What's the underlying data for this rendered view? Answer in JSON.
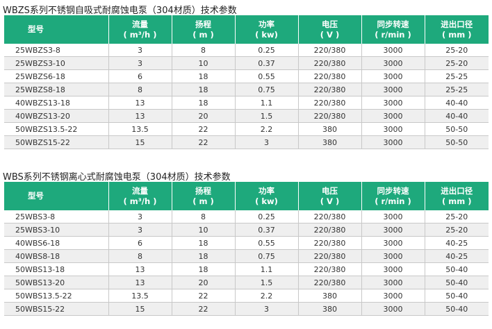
{
  "headers": [
    {
      "l1": "型号",
      "l2": ""
    },
    {
      "l1": "流量",
      "l2": "( m³/h )"
    },
    {
      "l1": "扬程",
      "l2": "( m )"
    },
    {
      "l1": "功率",
      "l2": "( kw)"
    },
    {
      "l1": "电压",
      "l2": "( V )"
    },
    {
      "l1": "同步转速",
      "l2": "( r/min )"
    },
    {
      "l1": "进出口径",
      "l2": "( mm )"
    }
  ],
  "tables": [
    {
      "title": "WBZS系列不锈钢自吸式耐腐蚀电泵（304材质）技术参数",
      "rows": [
        [
          "25WBZS3-8",
          "3",
          "8",
          "0.25",
          "220/380",
          "3000",
          "25-20"
        ],
        [
          "25WBZS3-10",
          "3",
          "10",
          "0.37",
          "220/380",
          "3000",
          "25-20"
        ],
        [
          "25WBZS6-18",
          "6",
          "18",
          "0.55",
          "220/380",
          "3000",
          "25-25"
        ],
        [
          "25WBZS8-18",
          "8",
          "18",
          "0.75",
          "220/380",
          "3000",
          "25-25"
        ],
        [
          "40WBZS13-18",
          "13",
          "18",
          "1.1",
          "220/380",
          "3000",
          "40-40"
        ],
        [
          "40WBZS13-20",
          "13",
          "20",
          "1.5",
          "220/380",
          "3000",
          "40-40"
        ],
        [
          "50WBZS13.5-22",
          "13.5",
          "22",
          "2.2",
          "380",
          "3000",
          "50-50"
        ],
        [
          "50WBZS15-22",
          "15",
          "22",
          "3",
          "380",
          "3000",
          "50-50"
        ]
      ]
    },
    {
      "title": "WBS系列不锈钢离心式耐腐蚀电泵（304材质）技术参数",
      "rows": [
        [
          "25WBS3-8",
          "3",
          "8",
          "0.25",
          "220/380",
          "3000",
          "25-20"
        ],
        [
          "25WBS3-10",
          "3",
          "10",
          "0.37",
          "220/380",
          "3000",
          "25-20"
        ],
        [
          "40WBS6-18",
          "6",
          "18",
          "0.55",
          "220/380",
          "3000",
          "40-25"
        ],
        [
          "40WBS8-18",
          "8",
          "18",
          "0.75",
          "220/380",
          "3000",
          "40-25"
        ],
        [
          "50WBS13-18",
          "13",
          "18",
          "1.1",
          "220/380",
          "3000",
          "50-40"
        ],
        [
          "50WBS13-20",
          "13",
          "20",
          "1.5",
          "220/380",
          "3000",
          "50-40"
        ],
        [
          "50WBS13.5-22",
          "13.5",
          "22",
          "2.2",
          "380",
          "3000",
          "50-40"
        ],
        [
          "50WBS15-22",
          "15",
          "22",
          "3",
          "380",
          "3000",
          "50-40"
        ]
      ]
    }
  ]
}
